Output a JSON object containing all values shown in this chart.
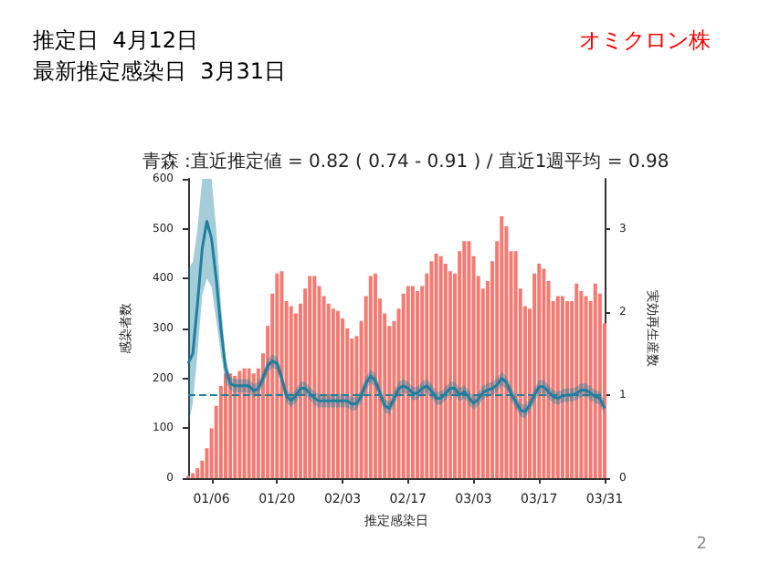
{
  "chart_data": {
    "type": "bar",
    "title": "青森 :直近推定値 = 0.82 ( 0.74 - 0.91 ) / 直近1週平均 = 0.98",
    "xlabel": "推定感染日",
    "ylabel": "感染者数",
    "y2label": "実効再生産数",
    "annotations": [
      "推定日  4月12日",
      "最新推定感染日  3月31日",
      "オミクロン株",
      "2"
    ],
    "x": [
      "--01-01",
      "--01-02",
      "--01-03",
      "--01-04",
      "--01-05",
      "--01-06",
      "--01-07",
      "--01-08",
      "--01-09",
      "--01-10",
      "--01-11",
      "--01-12",
      "--01-13",
      "--01-14",
      "--01-15",
      "--01-16",
      "--01-17",
      "--01-18",
      "--01-19",
      "--01-20",
      "--01-21",
      "--01-22",
      "--01-23",
      "--01-24",
      "--01-25",
      "--01-26",
      "--01-27",
      "--01-28",
      "--01-29",
      "--01-30",
      "--01-31",
      "--02-01",
      "--02-02",
      "--02-03",
      "--02-04",
      "--02-05",
      "--02-06",
      "--02-07",
      "--02-08",
      "--02-09",
      "--02-10",
      "--02-11",
      "--02-12",
      "--02-13",
      "--02-14",
      "--02-15",
      "--02-16",
      "--02-17",
      "--02-18",
      "--02-19",
      "--02-20",
      "--02-21",
      "--02-22",
      "--02-23",
      "--02-24",
      "--02-25",
      "--02-26",
      "--02-27",
      "--02-28",
      "--03-01",
      "--03-02",
      "--03-03",
      "--03-04",
      "--03-05",
      "--03-06",
      "--03-07",
      "--03-08",
      "--03-09",
      "--03-10",
      "--03-11",
      "--03-12",
      "--03-13",
      "--03-14",
      "--03-15",
      "--03-16",
      "--03-17",
      "--03-18",
      "--03-19",
      "--03-20",
      "--03-21",
      "--03-22",
      "--03-23",
      "--03-24",
      "--03-25",
      "--03-26",
      "--03-27",
      "--03-28",
      "--03-29",
      "--03-30",
      "--03-31"
    ],
    "series": [
      {
        "color": "#f47a72",
        "values": [
          5,
          10,
          20,
          35,
          60,
          100,
          145,
          185,
          210,
          210,
          205,
          215,
          220,
          220,
          210,
          220,
          250,
          305,
          370,
          410,
          415,
          355,
          345,
          330,
          350,
          380,
          405,
          405,
          385,
          365,
          350,
          340,
          335,
          320,
          300,
          280,
          285,
          315,
          365,
          405,
          410,
          360,
          330,
          305,
          315,
          340,
          370,
          385,
          385,
          375,
          385,
          410,
          435,
          450,
          445,
          430,
          415,
          410,
          455,
          475,
          475,
          445,
          405,
          380,
          395,
          435,
          475,
          525,
          505,
          455,
          455,
          380,
          345,
          340,
          410,
          430,
          420,
          395,
          355,
          365,
          365,
          355,
          355,
          390,
          375,
          365,
          355,
          390,
          370,
          310
        ]
      },
      {
        "type": "line",
        "axis": "y2",
        "color": "#1f7f9f",
        "values": [
          1.38,
          1.5,
          2.1,
          2.76,
          3.09,
          2.88,
          2.4,
          1.8,
          1.32,
          1.14,
          1.11,
          1.11,
          1.11,
          1.11,
          1.05,
          1.08,
          1.2,
          1.35,
          1.41,
          1.38,
          1.2,
          0.99,
          0.93,
          0.99,
          1.08,
          1.08,
          1.02,
          0.96,
          0.93,
          0.93,
          0.93,
          0.93,
          0.93,
          0.93,
          0.93,
          0.89,
          0.9,
          0.99,
          1.14,
          1.23,
          1.17,
          1.02,
          0.87,
          0.84,
          0.96,
          1.08,
          1.11,
          1.08,
          1.02,
          1.02,
          1.08,
          1.11,
          1.05,
          0.96,
          0.96,
          1.02,
          1.08,
          1.08,
          1.0,
          1.04,
          0.97,
          0.9,
          0.95,
          1.03,
          1.06,
          1.08,
          1.12,
          1.2,
          1.15,
          1.02,
          0.92,
          0.82,
          0.8,
          0.88,
          1.0,
          1.1,
          1.1,
          1.04,
          0.98,
          0.96,
          0.99,
          1.0,
          1.0,
          1.02,
          1.06,
          1.06,
          1.02,
          0.98,
          0.96,
          0.84
        ],
        "lower": [
          0.63,
          0.9,
          1.5,
          2.2,
          2.4,
          2.3,
          1.9,
          1.5,
          1.15,
          1.06,
          1.03,
          1.03,
          1.03,
          1.03,
          0.97,
          1.0,
          1.12,
          1.27,
          1.33,
          1.3,
          1.12,
          0.91,
          0.85,
          0.91,
          1.0,
          1.0,
          0.94,
          0.88,
          0.85,
          0.85,
          0.85,
          0.85,
          0.85,
          0.85,
          0.85,
          0.81,
          0.82,
          0.91,
          1.06,
          1.15,
          1.09,
          0.94,
          0.79,
          0.76,
          0.88,
          1.0,
          1.03,
          1.0,
          0.94,
          0.94,
          1.0,
          1.03,
          0.97,
          0.88,
          0.88,
          0.94,
          1.0,
          1.0,
          0.92,
          0.96,
          0.89,
          0.82,
          0.87,
          0.95,
          0.98,
          1.0,
          1.04,
          1.12,
          1.07,
          0.94,
          0.84,
          0.74,
          0.72,
          0.8,
          0.92,
          1.02,
          1.02,
          0.96,
          0.9,
          0.88,
          0.91,
          0.92,
          0.92,
          0.94,
          0.98,
          0.98,
          0.94,
          0.9,
          0.88,
          0.76
        ],
        "upper": [
          2.52,
          2.6,
          3.0,
          3.6,
          3.6,
          3.6,
          3.0,
          2.1,
          1.45,
          1.22,
          1.19,
          1.19,
          1.19,
          1.19,
          1.13,
          1.16,
          1.28,
          1.43,
          1.49,
          1.46,
          1.28,
          1.07,
          1.01,
          1.07,
          1.16,
          1.16,
          1.1,
          1.04,
          1.01,
          1.01,
          1.01,
          1.01,
          1.01,
          1.01,
          1.01,
          0.97,
          0.98,
          1.07,
          1.22,
          1.31,
          1.25,
          1.1,
          0.95,
          0.92,
          1.04,
          1.16,
          1.19,
          1.16,
          1.1,
          1.1,
          1.16,
          1.19,
          1.13,
          1.04,
          1.04,
          1.1,
          1.16,
          1.16,
          1.08,
          1.12,
          1.05,
          0.98,
          1.03,
          1.11,
          1.14,
          1.16,
          1.2,
          1.28,
          1.23,
          1.1,
          1.0,
          0.9,
          0.88,
          0.96,
          1.08,
          1.18,
          1.18,
          1.12,
          1.06,
          1.04,
          1.07,
          1.08,
          1.08,
          1.1,
          1.14,
          1.14,
          1.1,
          1.06,
          1.04,
          0.92
        ]
      }
    ],
    "xlim": [
      "--01-01",
      "--03-31"
    ],
    "xticks": [
      {
        "value": "--01-06",
        "label": "01/06"
      },
      {
        "value": "--01-20",
        "label": "01/20"
      },
      {
        "value": "--02-03",
        "label": "02/03"
      },
      {
        "value": "--02-17",
        "label": "02/17"
      },
      {
        "value": "--03-03",
        "label": "03/03"
      },
      {
        "value": "--03-17",
        "label": "03/17"
      },
      {
        "value": "--03-31",
        "label": "03/31"
      }
    ],
    "ylim": [
      0,
      600
    ],
    "yticks": [
      0,
      100,
      200,
      300,
      400,
      500,
      600
    ],
    "y2lim": [
      0,
      3.6
    ],
    "y2ticks": [
      0,
      1,
      2,
      3
    ],
    "ref_lines": [
      {
        "axis": "y2",
        "value": 1,
        "color": "#1f7f9f",
        "line_style": "dashed"
      }
    ],
    "grid": false,
    "marker": "none",
    "line_style": "solid"
  }
}
